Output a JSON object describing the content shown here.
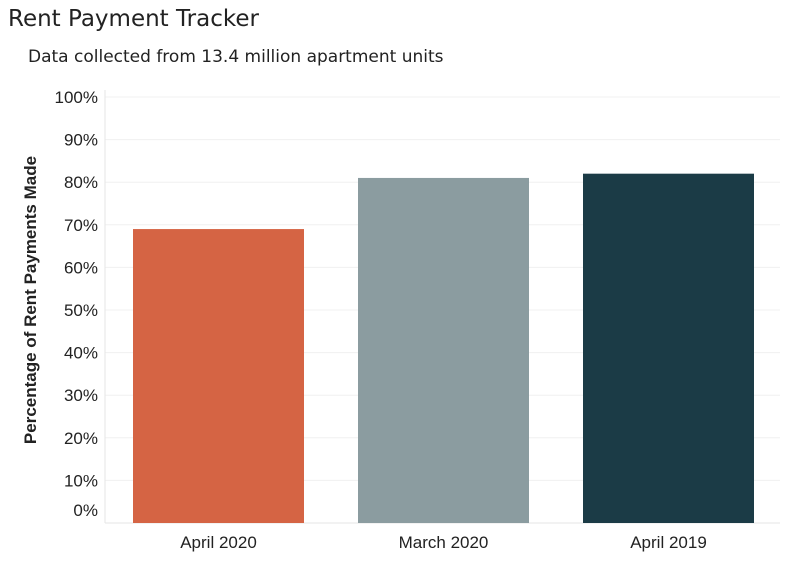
{
  "page": {
    "title": "Rent Payment Tracker",
    "subtitle": "Data collected from 13.4 million apartment units"
  },
  "chart_data": {
    "type": "bar",
    "categories": [
      "April 2020",
      "March 2020",
      "April 2019"
    ],
    "values": [
      69,
      81,
      82
    ],
    "colors": [
      "#d56444",
      "#8b9ca0",
      "#1b3b46"
    ],
    "ylabel": "Percentage of Rent Payments Made",
    "xlabel": "",
    "ylim": [
      0,
      100
    ],
    "yticks": [
      0,
      10,
      20,
      30,
      40,
      50,
      60,
      70,
      80,
      90,
      100
    ],
    "ytick_labels": [
      "0%",
      "10%",
      "20%",
      "30%",
      "40%",
      "50%",
      "60%",
      "70%",
      "80%",
      "90%",
      "100%"
    ],
    "grid": true,
    "legend": "none"
  }
}
